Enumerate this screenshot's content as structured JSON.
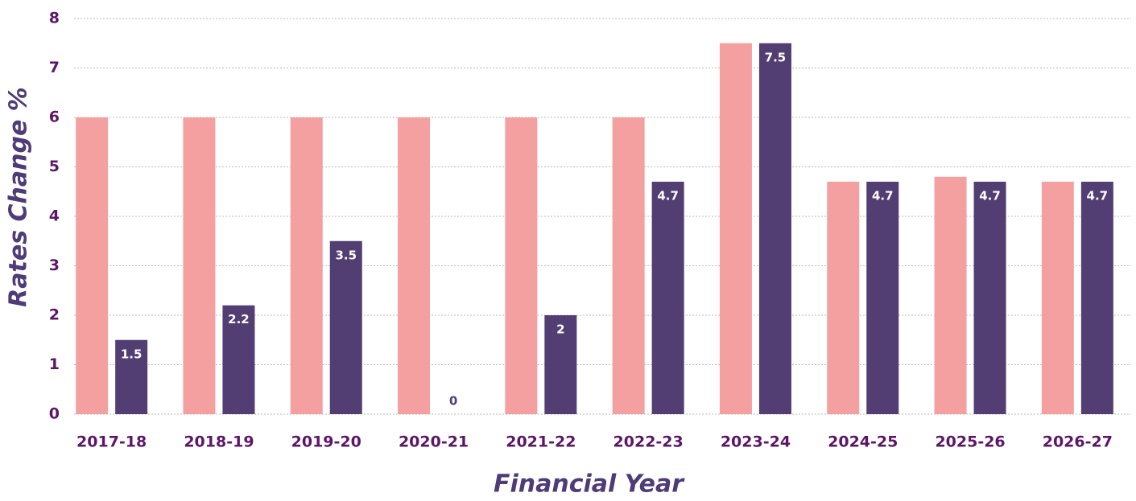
{
  "chart_data": {
    "type": "bar",
    "x_label": "Financial Year",
    "y_label": "Rates Change %",
    "categories": [
      "2017-18",
      "2018-19",
      "2019-20",
      "2020-21",
      "2021-22",
      "2022-23",
      "2023-24",
      "2024-25",
      "2025-26",
      "2026-27"
    ],
    "series": [
      {
        "color": "#f4a0a0",
        "values": [
          6,
          6,
          6,
          6,
          6,
          6,
          7.5,
          4.7,
          4.8,
          4.7
        ]
      },
      {
        "color": "#523e72",
        "values": [
          1.5,
          2.2,
          3.5,
          0,
          2,
          4.7,
          7.5,
          4.7,
          4.7,
          4.7
        ],
        "show_labels": true
      }
    ],
    "ylim": [
      0,
      8
    ],
    "yticks": [
      0,
      1,
      2,
      3,
      4,
      5,
      6,
      7,
      8
    ],
    "grid": true
  }
}
